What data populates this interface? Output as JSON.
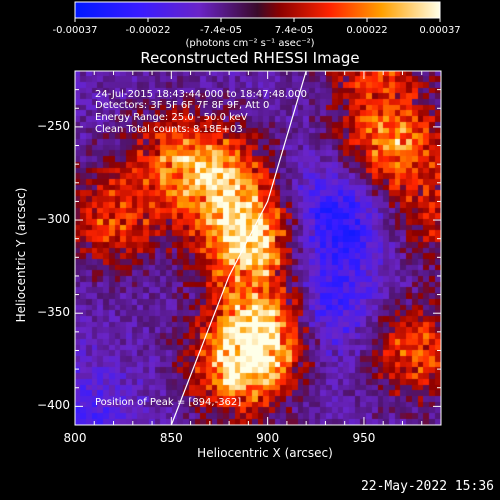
{
  "colorbar": {
    "ticks": [
      "-0.00037",
      "-0.00022",
      "-7.4e-05",
      "7.4e-05",
      "0.00022",
      "0.00037"
    ],
    "unit_label": "(photons cm⁻² s⁻¹ asec⁻²)",
    "range": [
      -0.00037,
      0.00037
    ]
  },
  "chart_data": {
    "type": "heatmap",
    "title": "Reconstructed RHESSI Image",
    "xlabel": "Heliocentric X (arcsec)",
    "ylabel": "Heliocentric Y (arcsec)",
    "xlim": [
      800,
      990
    ],
    "ylim": [
      -410,
      -220
    ],
    "xticks": [
      800,
      850,
      900,
      950
    ],
    "yticks": [
      -250,
      -300,
      -350,
      -400
    ],
    "xtick_labels": [
      "800",
      "850",
      "900",
      "950"
    ],
    "ytick_labels": [
      "−250",
      "−300",
      "−350",
      "−400"
    ],
    "limb_curve": {
      "x": [
        850,
        880,
        900,
        920
      ],
      "y": [
        -410,
        -330,
        -290,
        -220
      ]
    },
    "annotations": [
      "24-Jul-2015 18:43:44.000 to 18:47:48.000",
      "Detectors: 3F 5F 6F 7F 8F 9F, Att 0",
      "Energy Range: 25.0 - 50.0 keV",
      "Clean     Total counts: 8.18E+03"
    ],
    "peak_label": "Position of Peak = [894,-362]",
    "peak": [
      894,
      -362
    ],
    "sources": [
      {
        "x": 892,
        "y": -312,
        "amp": 1.0
      },
      {
        "x": 898,
        "y": -360,
        "amp": 1.0
      },
      {
        "x": 875,
        "y": -278,
        "amp": 0.75
      },
      {
        "x": 885,
        "y": -382,
        "amp": 0.7
      },
      {
        "x": 965,
        "y": -260,
        "amp": 0.75
      },
      {
        "x": 975,
        "y": -370,
        "amp": 0.6
      },
      {
        "x": 820,
        "y": -300,
        "amp": 0.55
      },
      {
        "x": 850,
        "y": -265,
        "amp": 0.45
      },
      {
        "x": 955,
        "y": -215,
        "amp": 0.55
      },
      {
        "x": 985,
        "y": -300,
        "amp": 0.4
      }
    ],
    "negative_regions": [
      {
        "x": 935,
        "y": -300,
        "amp": 1.0
      },
      {
        "x": 930,
        "y": -350,
        "amp": 0.8
      },
      {
        "x": 805,
        "y": -405,
        "amp": 0.5
      }
    ]
  },
  "footer": {
    "date": "22-May-2022 15:36"
  }
}
